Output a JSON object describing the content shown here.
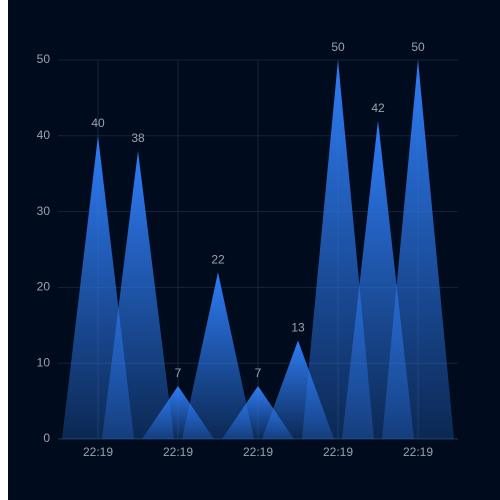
{
  "chart_data": {
    "type": "peak-bar",
    "categories": [
      "22:19",
      null,
      "22:19",
      null,
      "22:19",
      null,
      "22:19",
      null,
      "22:19"
    ],
    "values": [
      40,
      38,
      7,
      22,
      7,
      13,
      50,
      42,
      50
    ],
    "color": "#2f7df6",
    "ylim": [
      0,
      50
    ],
    "yticks": [
      0,
      10,
      20,
      30,
      40,
      50
    ],
    "grid": true
  }
}
